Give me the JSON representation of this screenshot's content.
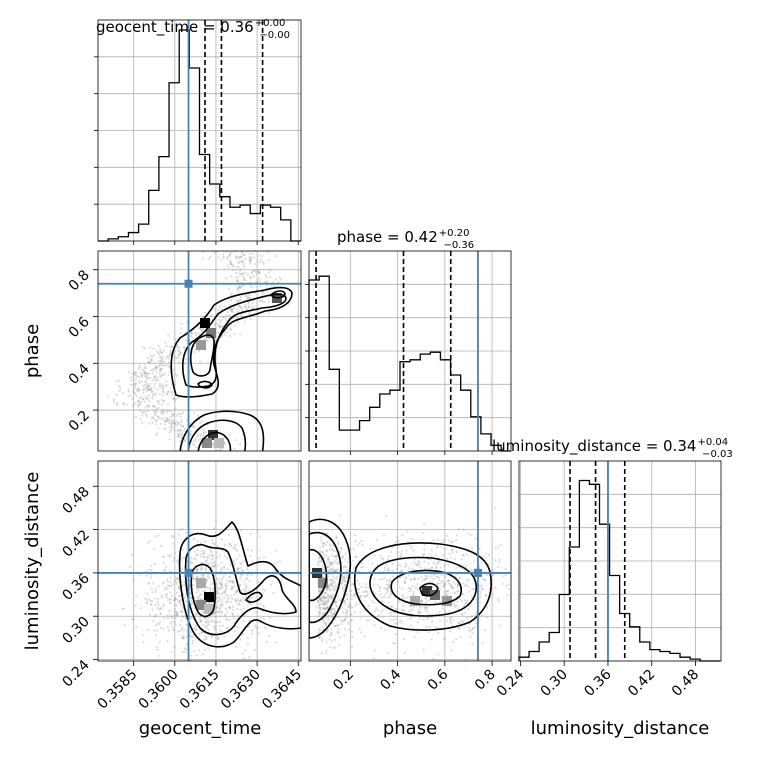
{
  "chart_data": {
    "type": "corner",
    "parameters": [
      "geocent_time",
      "phase",
      "luminosity_distance"
    ],
    "axis_labels": {
      "x": [
        "geocent_time",
        "phase",
        "luminosity_distance"
      ],
      "y": [
        "phase",
        "luminosity_distance"
      ]
    },
    "titles": [
      {
        "param": "geocent_time",
        "text": "geocent_time = 0.36",
        "plus": "+0.00",
        "minus": "−0.00"
      },
      {
        "param": "phase",
        "text": "phase = 0.42",
        "plus": "+0.20",
        "minus": "−0.36"
      },
      {
        "param": "luminosity_distance",
        "text": "luminosity_distance = 0.34",
        "plus": "+0.04",
        "minus": "−0.03"
      }
    ],
    "ranges": {
      "geocent_time": [
        0.3572,
        0.3646
      ],
      "phase": [
        0.025,
        0.88
      ],
      "luminosity_distance": [
        0.238,
        0.515
      ]
    },
    "ticks": {
      "geocent_time": [
        "0.3585",
        "0.3600",
        "0.3615",
        "0.3630",
        "0.3645"
      ],
      "phase": [
        "0.2",
        "0.4",
        "0.6",
        "0.8"
      ],
      "luminosity_distance": [
        "0.24",
        "0.30",
        "0.36",
        "0.42",
        "0.48"
      ]
    },
    "truths": {
      "geocent_time": 0.3605,
      "phase": 0.74,
      "luminosity_distance": 0.36
    },
    "quantiles": {
      "geocent_time": [
        0.3611,
        0.3617,
        0.3632
      ],
      "phase": [
        0.055,
        0.425,
        0.625
      ],
      "luminosity_distance": [
        0.308,
        0.343,
        0.383
      ]
    },
    "histograms": {
      "geocent_time": {
        "edges_from": 0.3572,
        "bin_width": 0.00037,
        "counts": [
          0.0,
          0.01,
          0.02,
          0.04,
          0.08,
          0.24,
          0.4,
          0.75,
          1.0,
          0.82,
          0.41,
          0.27,
          0.21,
          0.16,
          0.17,
          0.13,
          0.17,
          0.16,
          0.1,
          0.0
        ]
      },
      "phase": {
        "edges_from": 0.025,
        "bin_width": 0.0428,
        "counts": [
          0.9,
          0.92,
          0.43,
          0.11,
          0.11,
          0.16,
          0.23,
          0.3,
          0.32,
          0.47,
          0.48,
          0.51,
          0.52,
          0.48,
          0.4,
          0.32,
          0.18,
          0.09,
          0.03,
          0.0
        ]
      },
      "luminosity_distance": {
        "edges_from": 0.238,
        "bin_width": 0.0138,
        "counts": [
          0.02,
          0.05,
          0.1,
          0.15,
          0.35,
          0.6,
          0.95,
          0.93,
          0.72,
          0.45,
          0.25,
          0.18,
          0.1,
          0.06,
          0.05,
          0.04,
          0.02,
          0.01,
          0.0,
          0.0
        ]
      }
    },
    "grid": true,
    "colors": {
      "truth": "#4682b4",
      "hist": "#000000",
      "quantile": "#000000",
      "grid": "#b0b0b0",
      "scatter": "#9a9a9a"
    }
  }
}
